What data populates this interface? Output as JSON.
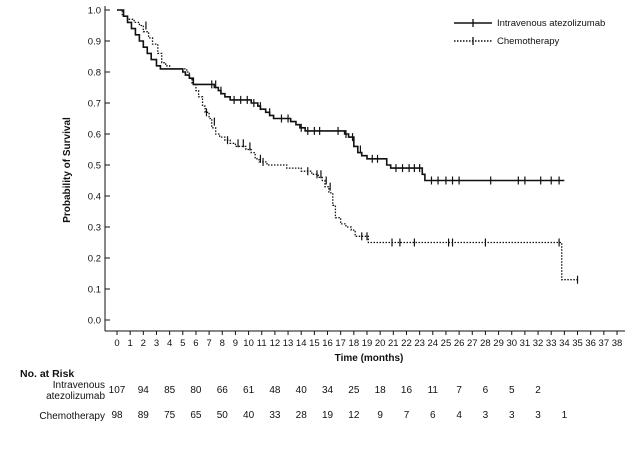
{
  "chart_data": {
    "type": "line",
    "subtype": "kaplan-meier",
    "title": "",
    "xlabel": "Time (months)",
    "ylabel": "Probability of Survival",
    "xlim": [
      0,
      38
    ],
    "ylim": [
      0,
      1.0
    ],
    "x_ticks": [
      "0",
      "1",
      "2",
      "3",
      "4",
      "5",
      "6",
      "7",
      "8",
      "9",
      "10",
      "11",
      "12",
      "13",
      "14",
      "15",
      "16",
      "17",
      "18",
      "19",
      "20",
      "21",
      "22",
      "23",
      "24",
      "25",
      "26",
      "27",
      "28",
      "29",
      "30",
      "31",
      "32",
      "33",
      "34",
      "35",
      "36",
      "37",
      "38"
    ],
    "y_ticks": [
      "0.0",
      "0.1",
      "0.2",
      "0.3",
      "0.4",
      "0.5",
      "0.6",
      "0.7",
      "0.8",
      "0.9",
      "1.0"
    ],
    "legend_position": "top-right",
    "series": [
      {
        "name": "Intravenous atezolizumab",
        "line_style": "solid",
        "steps": [
          [
            0,
            1.0
          ],
          [
            0.5,
            0.98
          ],
          [
            0.8,
            0.96
          ],
          [
            1.1,
            0.94
          ],
          [
            1.4,
            0.92
          ],
          [
            1.7,
            0.9
          ],
          [
            2.0,
            0.88
          ],
          [
            2.3,
            0.86
          ],
          [
            2.6,
            0.84
          ],
          [
            3.0,
            0.82
          ],
          [
            3.3,
            0.81
          ],
          [
            5.0,
            0.8
          ],
          [
            5.2,
            0.79
          ],
          [
            5.5,
            0.78
          ],
          [
            5.8,
            0.76
          ],
          [
            7.4,
            0.75
          ],
          [
            7.7,
            0.74
          ],
          [
            7.9,
            0.73
          ],
          [
            8.2,
            0.72
          ],
          [
            8.6,
            0.71
          ],
          [
            10.2,
            0.7
          ],
          [
            10.7,
            0.69
          ],
          [
            10.9,
            0.68
          ],
          [
            11.3,
            0.67
          ],
          [
            11.6,
            0.66
          ],
          [
            11.9,
            0.65
          ],
          [
            13.2,
            0.64
          ],
          [
            13.6,
            0.63
          ],
          [
            13.9,
            0.62
          ],
          [
            14.3,
            0.61
          ],
          [
            17.3,
            0.6
          ],
          [
            17.6,
            0.59
          ],
          [
            18.0,
            0.56
          ],
          [
            18.3,
            0.54
          ],
          [
            18.6,
            0.53
          ],
          [
            19.0,
            0.52
          ],
          [
            20.5,
            0.5
          ],
          [
            20.8,
            0.49
          ],
          [
            23.2,
            0.47
          ],
          [
            23.4,
            0.45
          ],
          [
            34.0,
            0.45
          ]
        ],
        "censored": [
          [
            7.2,
            0.76
          ],
          [
            7.5,
            0.76
          ],
          [
            7.9,
            0.74
          ],
          [
            8.9,
            0.71
          ],
          [
            9.4,
            0.71
          ],
          [
            9.9,
            0.71
          ],
          [
            10.4,
            0.7
          ],
          [
            10.9,
            0.69
          ],
          [
            11.6,
            0.67
          ],
          [
            12.5,
            0.65
          ],
          [
            13.0,
            0.65
          ],
          [
            14.0,
            0.62
          ],
          [
            14.5,
            0.61
          ],
          [
            15.0,
            0.61
          ],
          [
            15.4,
            0.61
          ],
          [
            16.8,
            0.61
          ],
          [
            17.4,
            0.6
          ],
          [
            17.9,
            0.59
          ],
          [
            18.5,
            0.55
          ],
          [
            19.4,
            0.52
          ],
          [
            19.8,
            0.52
          ],
          [
            21.2,
            0.49
          ],
          [
            21.7,
            0.49
          ],
          [
            22.2,
            0.49
          ],
          [
            22.6,
            0.49
          ],
          [
            23.0,
            0.49
          ],
          [
            23.9,
            0.45
          ],
          [
            24.4,
            0.45
          ],
          [
            25.0,
            0.45
          ],
          [
            25.5,
            0.45
          ],
          [
            26.0,
            0.45
          ],
          [
            28.4,
            0.45
          ],
          [
            30.5,
            0.45
          ],
          [
            31.0,
            0.45
          ],
          [
            32.2,
            0.45
          ],
          [
            33.0,
            0.45
          ],
          [
            33.6,
            0.45
          ]
        ]
      },
      {
        "name": "Chemotherapy",
        "line_style": "dotted",
        "steps": [
          [
            0,
            1.0
          ],
          [
            0.4,
            0.98
          ],
          [
            0.8,
            0.97
          ],
          [
            1.3,
            0.96
          ],
          [
            1.7,
            0.95
          ],
          [
            2.0,
            0.93
          ],
          [
            2.4,
            0.91
          ],
          [
            2.7,
            0.89
          ],
          [
            3.1,
            0.86
          ],
          [
            3.4,
            0.83
          ],
          [
            3.7,
            0.82
          ],
          [
            4.0,
            0.81
          ],
          [
            5.3,
            0.8
          ],
          [
            5.5,
            0.78
          ],
          [
            5.7,
            0.76
          ],
          [
            6.0,
            0.74
          ],
          [
            6.2,
            0.72
          ],
          [
            6.5,
            0.69
          ],
          [
            6.7,
            0.67
          ],
          [
            7.0,
            0.65
          ],
          [
            7.2,
            0.62
          ],
          [
            7.5,
            0.6
          ],
          [
            7.8,
            0.59
          ],
          [
            8.2,
            0.58
          ],
          [
            8.6,
            0.57
          ],
          [
            9.0,
            0.56
          ],
          [
            9.8,
            0.55
          ],
          [
            10.2,
            0.54
          ],
          [
            10.5,
            0.52
          ],
          [
            10.8,
            0.51
          ],
          [
            11.4,
            0.5
          ],
          [
            12.9,
            0.49
          ],
          [
            14.0,
            0.48
          ],
          [
            14.8,
            0.47
          ],
          [
            15.3,
            0.46
          ],
          [
            15.6,
            0.45
          ],
          [
            15.8,
            0.43
          ],
          [
            16.1,
            0.41
          ],
          [
            16.4,
            0.37
          ],
          [
            16.6,
            0.33
          ],
          [
            17.0,
            0.31
          ],
          [
            17.4,
            0.3
          ],
          [
            17.8,
            0.29
          ],
          [
            18.1,
            0.27
          ],
          [
            19.1,
            0.25
          ],
          [
            33.8,
            0.13
          ],
          [
            35.0,
            0.13
          ]
        ],
        "censored": [
          [
            2.2,
            0.95
          ],
          [
            6.8,
            0.67
          ],
          [
            7.4,
            0.64
          ],
          [
            8.4,
            0.58
          ],
          [
            9.2,
            0.57
          ],
          [
            9.6,
            0.57
          ],
          [
            10.1,
            0.56
          ],
          [
            10.9,
            0.52
          ],
          [
            11.1,
            0.51
          ],
          [
            14.5,
            0.48
          ],
          [
            15.2,
            0.47
          ],
          [
            15.5,
            0.47
          ],
          [
            15.9,
            0.45
          ],
          [
            16.2,
            0.43
          ],
          [
            18.6,
            0.27
          ],
          [
            19.0,
            0.27
          ],
          [
            20.9,
            0.25
          ],
          [
            21.5,
            0.25
          ],
          [
            22.6,
            0.25
          ],
          [
            25.2,
            0.25
          ],
          [
            25.5,
            0.25
          ],
          [
            28.0,
            0.25
          ],
          [
            33.6,
            0.25
          ],
          [
            35.0,
            0.13
          ]
        ]
      }
    ],
    "risk_table": {
      "title": "No. at Risk",
      "times": [
        0,
        2,
        4,
        6,
        8,
        10,
        12,
        14,
        16,
        18,
        20,
        22,
        24,
        26,
        28,
        30,
        32,
        34
      ],
      "rows": [
        {
          "label_line1": "Intravenous",
          "label_line2": "atezolizumab",
          "counts": [
            "107",
            "94",
            "85",
            "80",
            "66",
            "61",
            "48",
            "40",
            "34",
            "25",
            "18",
            "16",
            "11",
            "7",
            "6",
            "5",
            "2",
            ""
          ]
        },
        {
          "label_line1": "Chemotherapy",
          "label_line2": "",
          "counts": [
            "98",
            "89",
            "75",
            "65",
            "50",
            "40",
            "33",
            "28",
            "19",
            "12",
            "9",
            "7",
            "6",
            "4",
            "3",
            "3",
            "3",
            "1"
          ]
        }
      ]
    }
  }
}
